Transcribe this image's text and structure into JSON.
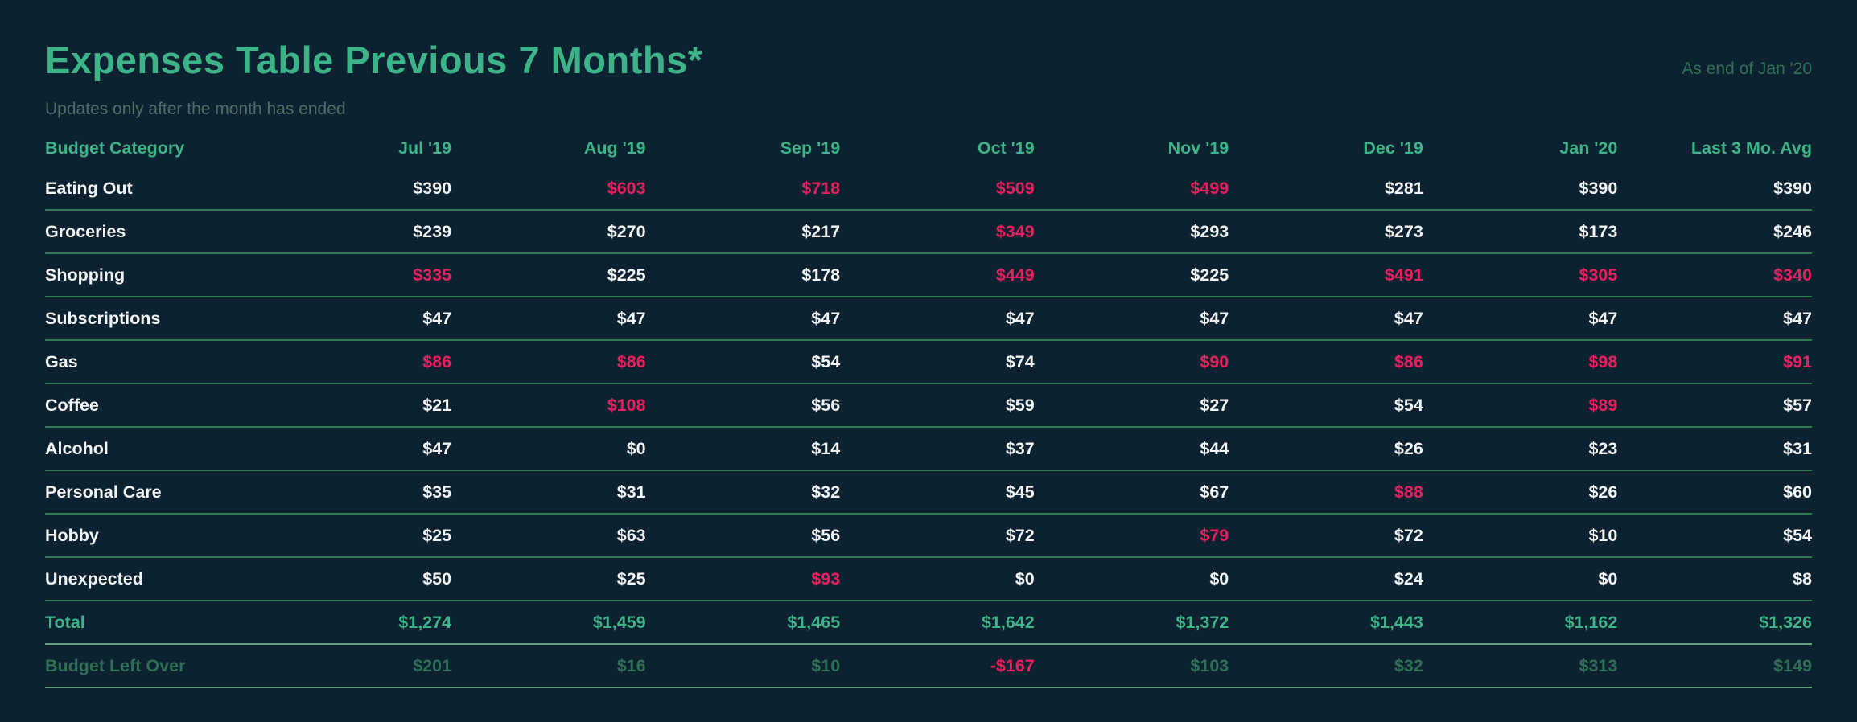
{
  "page": {
    "title": "Expenses Table Previous 7 Months*",
    "subtitle": "Updates only after the month has ended",
    "as_of": "As end of Jan '20"
  },
  "colors": {
    "background": "#0d2230",
    "accent_green": "#3cb487",
    "alert_red": "#e6205c",
    "text_white": "#f2f4f6",
    "muted_green_text": "#2d6f54",
    "row_divider": "#2f7a53",
    "strong_divider": "#619c7e"
  },
  "chart_data": {
    "type": "table",
    "title": "Expenses Table Previous 7 Months*",
    "subtitle": "Updates only after the month has ended",
    "note": "As end of Jan '20",
    "columns": [
      "Budget Category",
      "Jul '19",
      "Aug '19",
      "Sep '19",
      "Oct '19",
      "Nov '19",
      "Dec '19",
      "Jan '20",
      "Last 3 Mo. Avg"
    ],
    "rows": [
      {
        "label": "Eating Out",
        "style": "normal",
        "values": [
          "$390",
          "$603",
          "$718",
          "$509",
          "$499",
          "$281",
          "$390",
          "$390"
        ],
        "alerts": [
          false,
          true,
          true,
          true,
          true,
          false,
          false,
          false
        ]
      },
      {
        "label": "Groceries",
        "style": "normal",
        "values": [
          "$239",
          "$270",
          "$217",
          "$349",
          "$293",
          "$273",
          "$173",
          "$246"
        ],
        "alerts": [
          false,
          false,
          false,
          true,
          false,
          false,
          false,
          false
        ]
      },
      {
        "label": "Shopping",
        "style": "normal",
        "values": [
          "$335",
          "$225",
          "$178",
          "$449",
          "$225",
          "$491",
          "$305",
          "$340"
        ],
        "alerts": [
          true,
          false,
          false,
          true,
          false,
          true,
          true,
          true
        ]
      },
      {
        "label": "Subscriptions",
        "style": "normal",
        "values": [
          "$47",
          "$47",
          "$47",
          "$47",
          "$47",
          "$47",
          "$47",
          "$47"
        ],
        "alerts": [
          false,
          false,
          false,
          false,
          false,
          false,
          false,
          false
        ]
      },
      {
        "label": "Gas",
        "style": "normal",
        "values": [
          "$86",
          "$86",
          "$54",
          "$74",
          "$90",
          "$86",
          "$98",
          "$91"
        ],
        "alerts": [
          true,
          true,
          false,
          false,
          true,
          true,
          true,
          true
        ]
      },
      {
        "label": "Coffee",
        "style": "normal",
        "values": [
          "$21",
          "$108",
          "$56",
          "$59",
          "$27",
          "$54",
          "$89",
          "$57"
        ],
        "alerts": [
          false,
          true,
          false,
          false,
          false,
          false,
          true,
          false
        ]
      },
      {
        "label": "Alcohol",
        "style": "normal",
        "values": [
          "$47",
          "$0",
          "$14",
          "$37",
          "$44",
          "$26",
          "$23",
          "$31"
        ],
        "alerts": [
          false,
          false,
          false,
          false,
          false,
          false,
          false,
          false
        ]
      },
      {
        "label": "Personal Care",
        "style": "normal",
        "values": [
          "$35",
          "$31",
          "$32",
          "$45",
          "$67",
          "$88",
          "$26",
          "$60"
        ],
        "alerts": [
          false,
          false,
          false,
          false,
          false,
          true,
          false,
          false
        ]
      },
      {
        "label": "Hobby",
        "style": "normal",
        "values": [
          "$25",
          "$63",
          "$56",
          "$72",
          "$79",
          "$72",
          "$10",
          "$54"
        ],
        "alerts": [
          false,
          false,
          false,
          false,
          true,
          false,
          false,
          false
        ]
      },
      {
        "label": "Unexpected",
        "style": "normal",
        "values": [
          "$50",
          "$25",
          "$93",
          "$0",
          "$0",
          "$24",
          "$0",
          "$8"
        ],
        "alerts": [
          false,
          false,
          true,
          false,
          false,
          false,
          false,
          false
        ]
      },
      {
        "label": "Total",
        "style": "total",
        "values": [
          "$1,274",
          "$1,459",
          "$1,465",
          "$1,642",
          "$1,372",
          "$1,443",
          "$1,162",
          "$1,326"
        ],
        "alerts": [
          false,
          false,
          false,
          false,
          false,
          false,
          false,
          false
        ]
      },
      {
        "label": "Budget Left Over",
        "style": "leftover",
        "values": [
          "$201",
          "$16",
          "$10",
          "-$167",
          "$103",
          "$32",
          "$313",
          "$149"
        ],
        "alerts": [
          false,
          false,
          false,
          true,
          false,
          false,
          false,
          false
        ]
      }
    ]
  }
}
